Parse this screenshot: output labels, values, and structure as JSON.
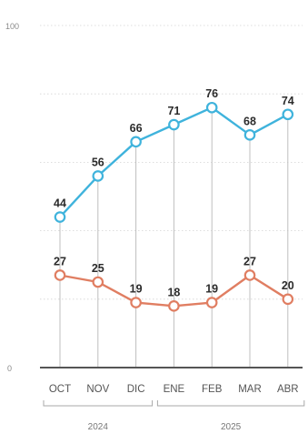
{
  "chart_data": {
    "type": "line",
    "categories": [
      "OCT",
      "NOV",
      "DIC",
      "ENE",
      "FEB",
      "MAR",
      "ABR"
    ],
    "years": [
      {
        "label": "2024",
        "categories": [
          "OCT",
          "NOV",
          "DIC"
        ]
      },
      {
        "label": "2025",
        "categories": [
          "ENE",
          "FEB",
          "MAR",
          "ABR"
        ]
      }
    ],
    "series": [
      {
        "color": "#3fb3dc",
        "values": [
          44,
          56,
          66,
          71,
          76,
          68,
          74
        ]
      },
      {
        "color": "#e07e62",
        "values": [
          27,
          25,
          19,
          18,
          19,
          27,
          20
        ]
      }
    ],
    "yticks": [
      "100",
      "0"
    ],
    "ylim": [
      0,
      100
    ],
    "grid": true
  }
}
